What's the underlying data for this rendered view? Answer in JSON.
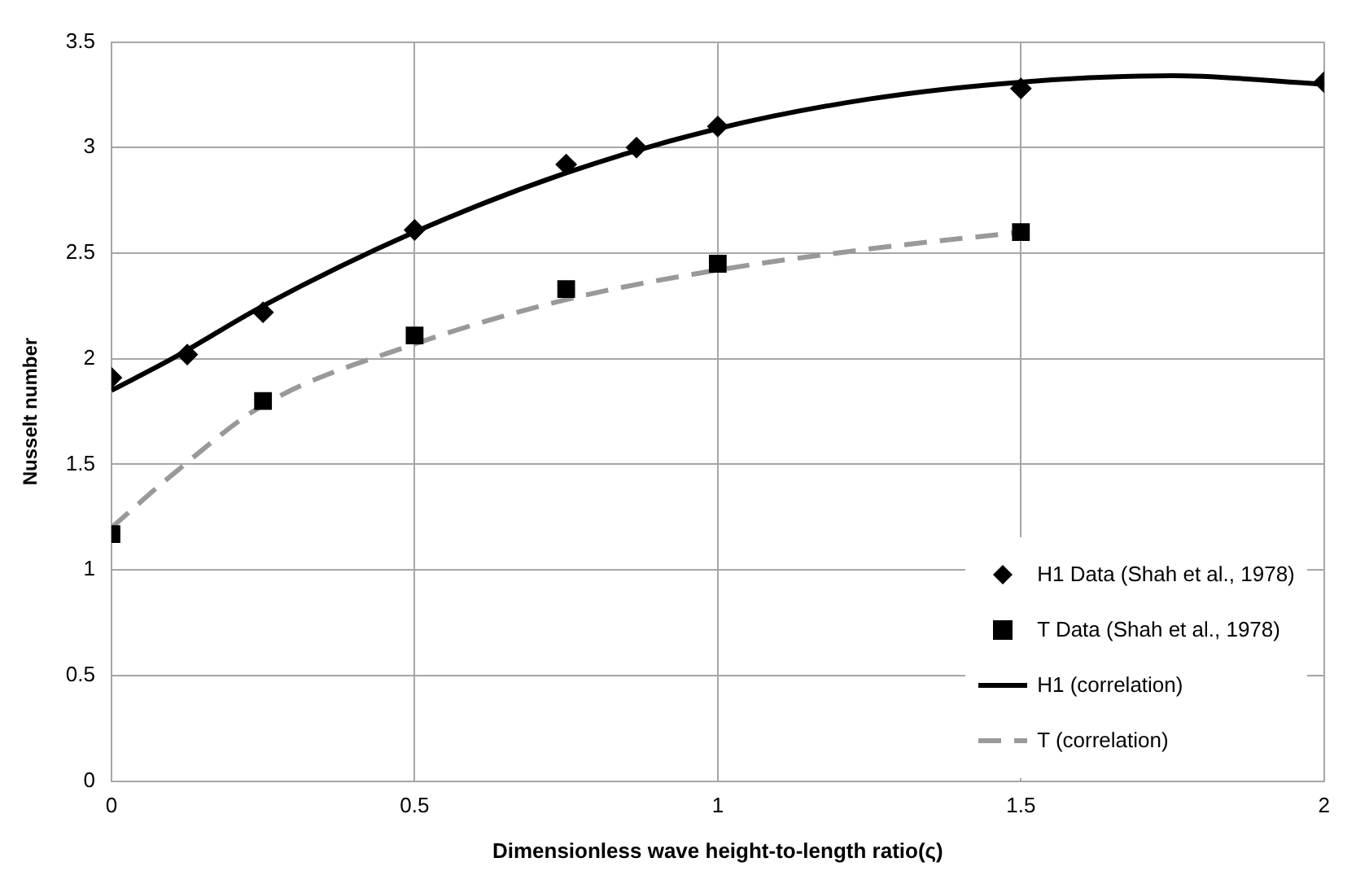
{
  "chart_data": {
    "type": "scatter",
    "xlabel": "Dimensionless wave height-to-length ratio(ς)",
    "ylabel": "Nusselt number",
    "xlim": [
      0,
      2
    ],
    "xticks": [
      0,
      0.5,
      1,
      1.5,
      2
    ],
    "ylim": [
      0,
      3.5
    ],
    "yticks": [
      0,
      0.5,
      1,
      1.5,
      2,
      2.5,
      3,
      3.5
    ],
    "grid": true,
    "legend": "bottom right",
    "series": [
      {
        "name": "H1 Data (Shah et al., 1978)",
        "marker": "diamond",
        "color": "#000000",
        "x": [
          0,
          0.125,
          0.25,
          0.5,
          0.75,
          0.866,
          1,
          1.5,
          2
        ],
        "values": [
          1.91,
          2.02,
          2.22,
          2.61,
          2.92,
          3.0,
          3.1,
          3.28,
          3.31
        ]
      },
      {
        "name": "T Data (Shah et al., 1978)",
        "marker": "square",
        "color": "#000000",
        "x": [
          0,
          0.25,
          0.5,
          0.75,
          1,
          1.5
        ],
        "values": [
          1.17,
          1.8,
          2.11,
          2.33,
          2.45,
          2.6
        ]
      },
      {
        "name": "H1 (correlation)",
        "type": "line",
        "line_style": "solid",
        "color": "#000000",
        "x": [
          0,
          0.1,
          0.25,
          0.5,
          0.75,
          1,
          1.25,
          1.5,
          1.75,
          2
        ],
        "values": [
          1.85,
          2.0,
          2.25,
          2.6,
          2.88,
          3.09,
          3.23,
          3.31,
          3.34,
          3.3
        ]
      },
      {
        "name": "T (correlation)",
        "type": "line",
        "line_style": "dashed",
        "color": "#999999",
        "x": [
          0,
          0.1,
          0.25,
          0.5,
          0.75,
          1,
          1.25,
          1.5
        ],
        "values": [
          1.2,
          1.45,
          1.78,
          2.07,
          2.28,
          2.42,
          2.52,
          2.6
        ]
      }
    ]
  }
}
